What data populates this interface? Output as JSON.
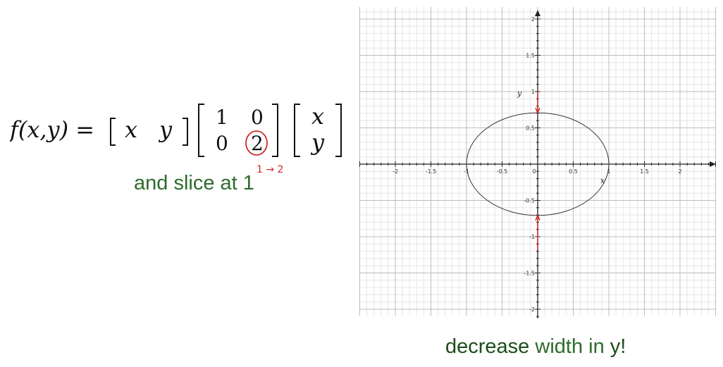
{
  "formula": {
    "lhs": "f(x,y) =",
    "row_vector": [
      "x",
      "y"
    ],
    "matrix": [
      [
        "1",
        "0"
      ],
      [
        "0",
        "2"
      ]
    ],
    "column_vector": [
      "x",
      "y"
    ],
    "annotation": "1 → 2"
  },
  "slice_text": "and slice at 1",
  "caption": {
    "part1": "decrease",
    "part2": " width in ",
    "part3": "y!"
  },
  "graph": {
    "x_axis_label": "x",
    "y_axis_label": "y",
    "x_ticks": [
      "-2",
      "-1.5",
      "-1",
      "-0.5",
      "0",
      "0.5",
      "1",
      "1.5",
      "2"
    ],
    "y_ticks": [
      "2",
      "1.5",
      "1",
      "0.5",
      "-0.5",
      "-1",
      "-1.5",
      "-2"
    ],
    "xlim": [
      -2.5,
      2.5
    ],
    "ylim": [
      -2.1,
      2.1
    ],
    "ellipse": {
      "rx": 1,
      "ry": 0.707
    },
    "arrow_color": "#d12a2a"
  }
}
